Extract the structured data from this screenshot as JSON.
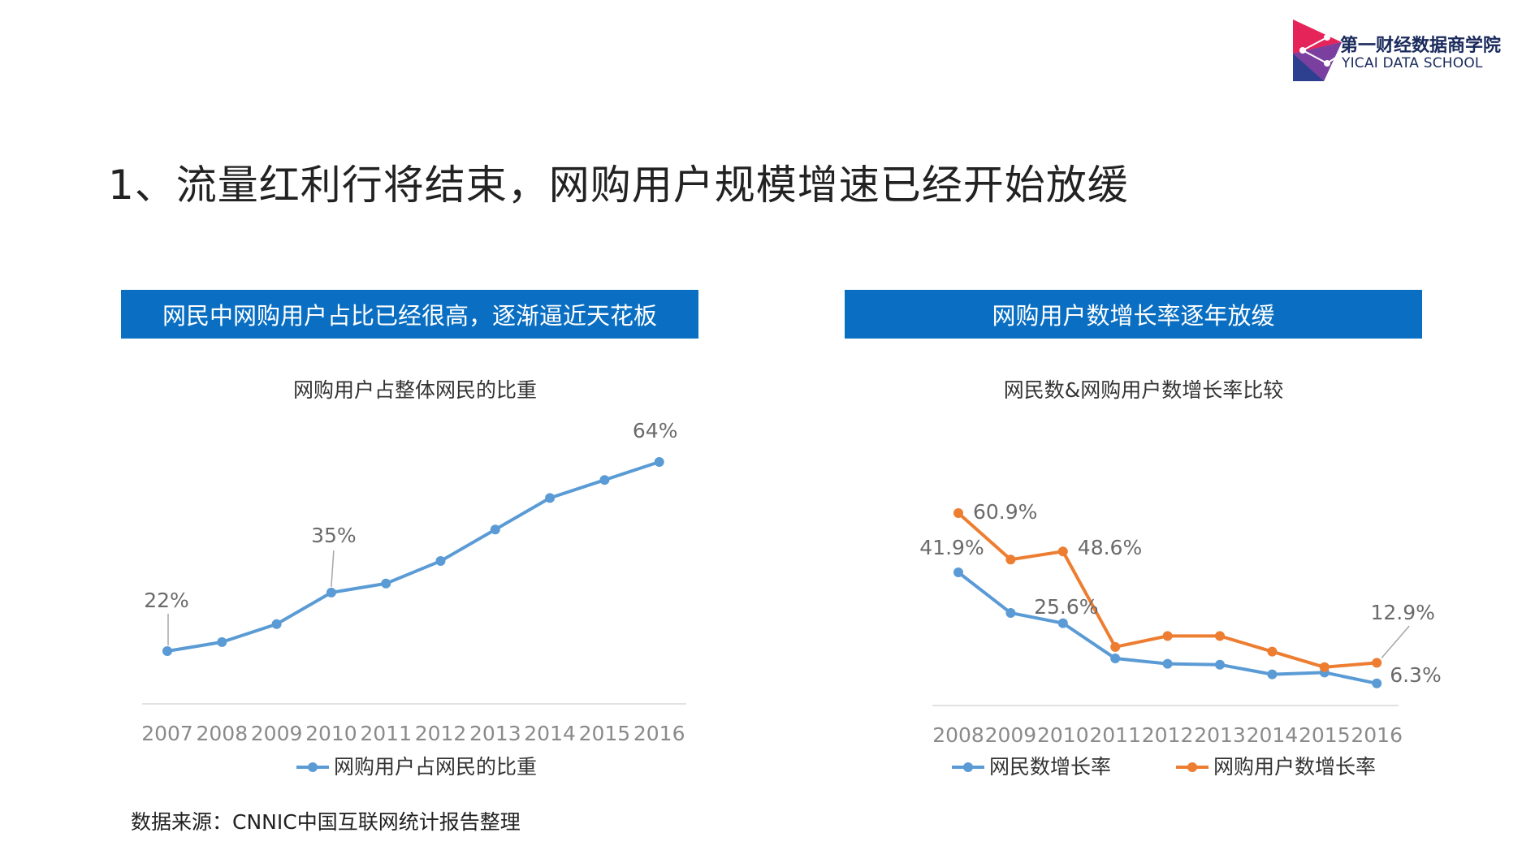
{
  "logo": {
    "name_cn": "第一财经数据商学院",
    "name_en": "YICAI DATA SCHOOL",
    "colors": [
      "#e5245a",
      "#2d3f8f",
      "#7b3fa0"
    ]
  },
  "page": {
    "title": "1、流量红利行将结束，网购用户规模增速已经开始放缓"
  },
  "banners": {
    "left": "网民中网购用户占比已经很高，逐渐逼近天花板",
    "right": "网购用户数增长率逐年放缓",
    "color": "#0a6fc2"
  },
  "source": "数据来源：CNNIC中国互联网统计报告整理",
  "chart_data": [
    {
      "type": "line",
      "title": "网购用户占整体网民的比重",
      "categories": [
        "2007",
        "2008",
        "2009",
        "2010",
        "2011",
        "2012",
        "2013",
        "2014",
        "2015",
        "2016"
      ],
      "series": [
        {
          "name": "网购用户占网民的比重",
          "color": "#5b9bd5",
          "values": [
            22,
            24,
            28,
            35,
            37,
            42,
            49,
            56,
            60,
            64
          ]
        }
      ],
      "labels": [
        {
          "index": 0,
          "text": "22%"
        },
        {
          "index": 3,
          "text": "35%"
        },
        {
          "index": 9,
          "text": "64%"
        }
      ],
      "ylim": [
        0,
        70
      ],
      "legend": "bottom"
    },
    {
      "type": "line",
      "title": "网民数&网购用户数增长率比较",
      "categories": [
        "2008",
        "2009",
        "2010",
        "2011",
        "2012",
        "2013",
        "2014",
        "2015",
        "2016"
      ],
      "series": [
        {
          "name": "网民数增长率",
          "color": "#5b9bd5",
          "values": [
            41.9,
            28.9,
            25.6,
            14.3,
            12.6,
            12.3,
            9.2,
            9.8,
            6.3
          ]
        },
        {
          "name": "网购用户数增长率",
          "color": "#ed7d31",
          "values": [
            60.9,
            46.0,
            48.6,
            18.0,
            21.5,
            21.5,
            16.5,
            11.5,
            12.9
          ]
        }
      ],
      "labels": [
        {
          "series": 0,
          "index": 0,
          "text": "41.9%"
        },
        {
          "series": 0,
          "index": 2,
          "text": "25.6%"
        },
        {
          "series": 0,
          "index": 8,
          "text": "6.3%"
        },
        {
          "series": 1,
          "index": 0,
          "text": "60.9%"
        },
        {
          "series": 1,
          "index": 2,
          "text": "48.6%"
        },
        {
          "series": 1,
          "index": 8,
          "text": "12.9%"
        }
      ],
      "ylim": [
        0,
        70
      ],
      "legend": "bottom"
    }
  ]
}
